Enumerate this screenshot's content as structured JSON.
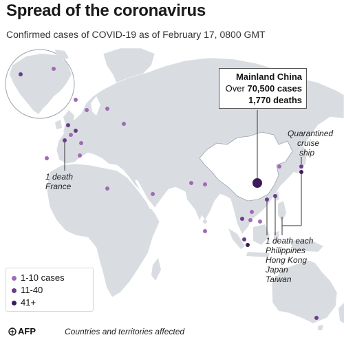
{
  "header": {
    "title": "Spread of the coronavirus",
    "subtitle": "Confirmed cases of COVID-19 as of February 17, 0800 GMT"
  },
  "callout": {
    "region": "Mainland China",
    "cases_prefix": "Over",
    "cases": "70,500 cases",
    "deaths": "1,770 deaths"
  },
  "annotations": {
    "ship": [
      "Quarantined",
      "cruise",
      "ship"
    ],
    "france": [
      "1 death",
      "France"
    ],
    "asia_deaths": [
      "1 death each",
      "Philippines",
      "Hong Kong",
      "Japan",
      "Taiwan"
    ]
  },
  "legend": {
    "items": [
      {
        "label": "1-10 cases",
        "color": "#a06ab4"
      },
      {
        "label": "11-40",
        "color": "#6a3d8a"
      },
      {
        "label": "41+",
        "color": "#3d1a5c"
      }
    ]
  },
  "footer": {
    "source": "AFP",
    "note": "Countries and territories affected"
  },
  "colors": {
    "land": "#d9dde2",
    "china": "#ffffff",
    "sea": "#ffffff",
    "light": "#a06ab4",
    "mid": "#6a3d8a",
    "dark": "#3d1a5c"
  }
}
